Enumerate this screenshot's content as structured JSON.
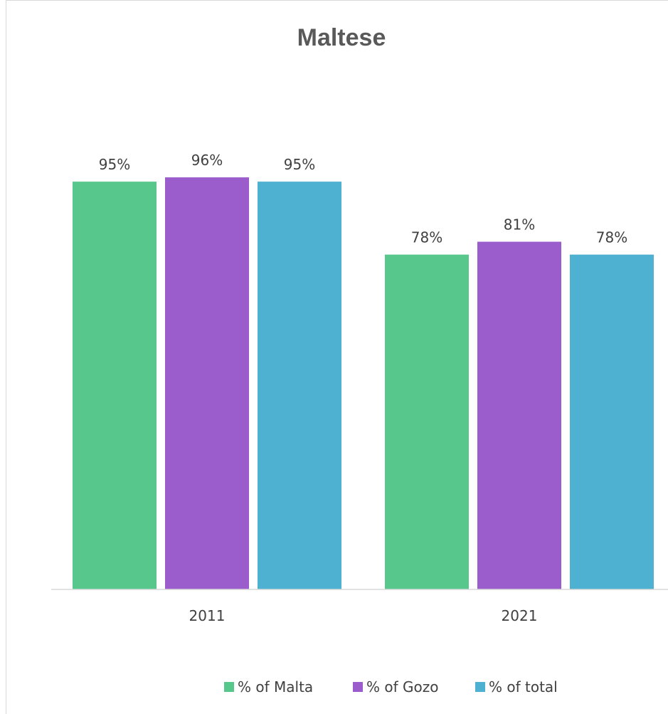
{
  "chart_data": {
    "type": "bar",
    "title": "Maltese",
    "categories": [
      "2011",
      "2021"
    ],
    "series": [
      {
        "name": "% of Malta",
        "values": [
          95,
          78
        ],
        "labels": [
          "95%",
          "78%"
        ],
        "color": "#57c78c"
      },
      {
        "name": "% of Gozo",
        "values": [
          96,
          81
        ],
        "labels": [
          "96%",
          "81%"
        ],
        "color": "#9b5ccc"
      },
      {
        "name": "% of total",
        "values": [
          95,
          78
        ],
        "labels": [
          "95%",
          "78%"
        ],
        "color": "#4fb1d1"
      }
    ],
    "xlabel": "",
    "ylabel": "",
    "ylim": [
      0,
      100
    ],
    "grid": false,
    "legend_position": "bottom"
  }
}
